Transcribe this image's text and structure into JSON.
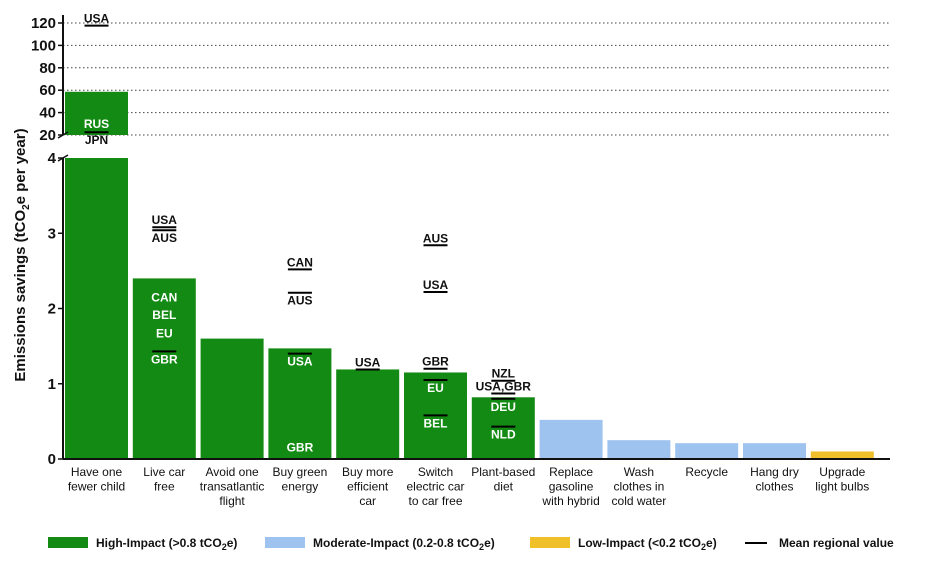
{
  "chart_data": {
    "type": "bar",
    "ylabel_parts": [
      "Emissions savings (tCO",
      "2",
      "e per year)"
    ],
    "y_axis_segments": [
      {
        "range": [
          0,
          4
        ],
        "ticks": [
          0,
          1,
          2,
          3,
          4
        ]
      },
      {
        "range": [
          20,
          120
        ],
        "ticks": [
          20,
          40,
          60,
          80,
          100,
          120
        ]
      }
    ],
    "categories": [
      [
        "Have one",
        "fewer child"
      ],
      [
        "Live car",
        "free"
      ],
      [
        "Avoid one",
        "transatlantic",
        "flight"
      ],
      [
        "Buy green",
        "energy"
      ],
      [
        "Buy more",
        "efficient",
        "car"
      ],
      [
        "Switch",
        "electric car",
        "to car free"
      ],
      [
        "Plant-based",
        "diet"
      ],
      [
        "Replace",
        "gasoline",
        "with hybrid"
      ],
      [
        "Wash",
        "clothes in",
        "cold water"
      ],
      [
        "Recycle"
      ],
      [
        "Hang dry",
        "clothes"
      ],
      [
        "Upgrade",
        "light bulbs"
      ]
    ],
    "values": [
      58.6,
      2.4,
      1.6,
      1.47,
      1.19,
      1.15,
      0.82,
      0.52,
      0.25,
      0.21,
      0.21,
      0.1
    ],
    "impact": [
      "high",
      "high",
      "high",
      "high",
      "high",
      "high",
      "high",
      "moderate",
      "moderate",
      "moderate",
      "moderate",
      "low"
    ],
    "colors": {
      "high": "#138a13",
      "moderate": "#9ec3ef",
      "low": "#efc02a",
      "mean": "#000000"
    },
    "regional_means": [
      {
        "bar": 0,
        "value": 117.7,
        "label": "USA"
      },
      {
        "bar": 0,
        "value": 23.7,
        "label": "RUS"
      },
      {
        "bar": 0,
        "value": 22.5,
        "label": "JPN"
      },
      {
        "bar": 1,
        "value": 3.08,
        "label": "USA"
      },
      {
        "bar": 1,
        "value": 3.04,
        "label": "AUS"
      },
      {
        "bar": 1,
        "value": 2.05,
        "label": "CAN"
      },
      {
        "bar": 1,
        "value": 2.02,
        "label": "BEL"
      },
      {
        "bar": 1,
        "value": 1.92,
        "label": "EU"
      },
      {
        "bar": 1,
        "value": 1.43,
        "label": "GBR"
      },
      {
        "bar": 3,
        "value": 2.52,
        "label": "CAN"
      },
      {
        "bar": 3,
        "value": 2.21,
        "label": "AUS"
      },
      {
        "bar": 3,
        "value": 1.4,
        "label": "USA"
      },
      {
        "bar": 3,
        "value": 0.06,
        "label": "GBR"
      },
      {
        "bar": 4,
        "value": 1.19,
        "label": "USA"
      },
      {
        "bar": 5,
        "value": 2.84,
        "label": "AUS"
      },
      {
        "bar": 5,
        "value": 2.22,
        "label": "USA"
      },
      {
        "bar": 5,
        "value": 1.2,
        "label": "GBR"
      },
      {
        "bar": 5,
        "value": 1.05,
        "label": "EU"
      },
      {
        "bar": 5,
        "value": 0.58,
        "label": "BEL"
      },
      {
        "bar": 6,
        "value": 1.04,
        "label": "NZL"
      },
      {
        "bar": 6,
        "value": 0.87,
        "label": "USA,GBR"
      },
      {
        "bar": 6,
        "value": 0.8,
        "label": "DEU"
      },
      {
        "bar": 6,
        "value": 0.43,
        "label": "NLD"
      }
    ],
    "legend": [
      {
        "key": "high",
        "label": [
          "High-Impact (>0.8 tCO",
          "2",
          "e)"
        ]
      },
      {
        "key": "moderate",
        "label": [
          "Moderate-Impact (0.2-0.8 tCO",
          "2",
          "e)"
        ]
      },
      {
        "key": "low",
        "label": [
          "Low-Impact (<0.2 tCO",
          "2",
          "e)"
        ]
      },
      {
        "key": "mean",
        "label": [
          "Mean regional value",
          "",
          ""
        ]
      }
    ]
  }
}
